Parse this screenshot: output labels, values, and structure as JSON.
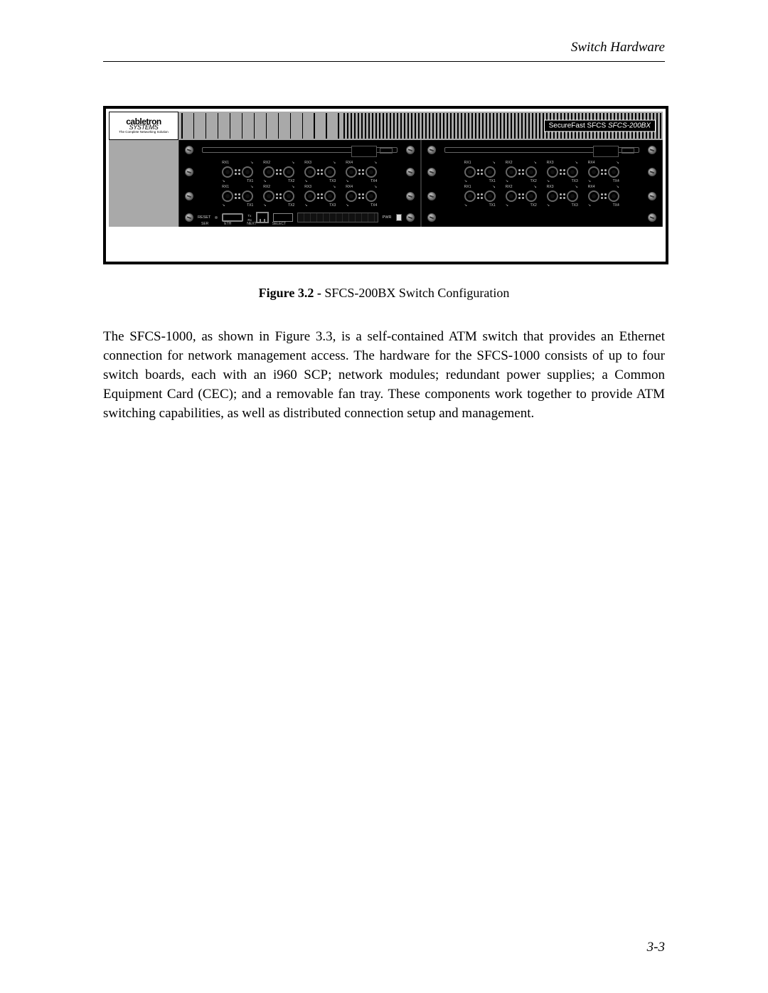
{
  "header": {
    "section_title": "Switch Hardware"
  },
  "figure": {
    "logo": {
      "brand": "cabletron",
      "sub": "SYSTEMS",
      "tagline": "The Complete Networking Solution"
    },
    "model_prefix": "SecureFast SFCS ",
    "model": "SFCS-200BX",
    "port_labels": {
      "rx": [
        "RX1",
        "RX2",
        "RX3",
        "RX4"
      ],
      "tx": [
        "TX1",
        "TX2",
        "TX3",
        "TX4"
      ]
    },
    "mgmt": {
      "reset": "RESET",
      "ser": "SER",
      "eth": "ETH",
      "next": "NEXT",
      "select": "SELECT",
      "pwr": "PWR",
      "tx": "Tx",
      "rx": "Rx"
    }
  },
  "caption": {
    "label": "Figure 3.2 - ",
    "text": "SFCS-200BX Switch Configuration"
  },
  "body": {
    "paragraph": "The SFCS-1000, as shown in Figure 3.3, is a self-contained ATM switch that provides an Ethernet connection for network management access. The hardware for the SFCS-1000 consists of up to four switch boards, each with an i960 SCP; network modules; redundant power supplies; a Common Equipment Card (CEC); and a removable fan tray. These components work together to provide ATM switching capabilities, as well as distributed connection setup and management."
  },
  "page_number": "3-3",
  "colors": {
    "page_bg": "#ffffff",
    "text": "#000000",
    "chassis_grey": "#a9a9a9",
    "panel_black": "#000000",
    "silk": "#cccccc"
  }
}
